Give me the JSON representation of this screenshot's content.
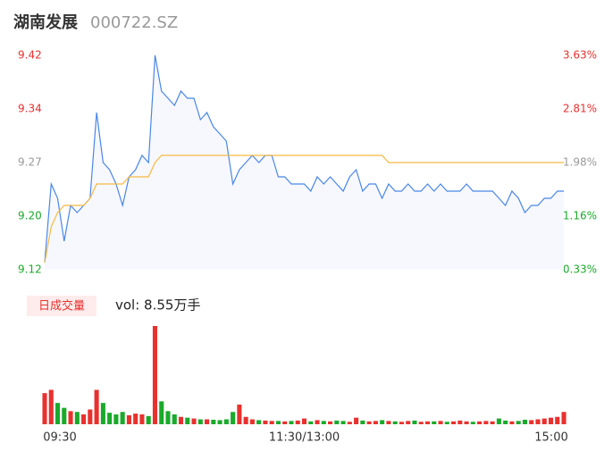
{
  "chart_data": [
    {
      "type": "line",
      "title": "湖南发展",
      "subtitle": "000722.SZ",
      "ylim": [
        9.12,
        9.42
      ],
      "yticks": [
        9.12,
        {
          "value": 9.195,
          "label": "9.20"
        },
        9.27,
        {
          "value": 9.345,
          "label": "9.34"
        },
        9.42
      ],
      "ytick_colors": [
        "#1aaa2b",
        "#1aaa2b",
        "#999999",
        "#e8312f",
        "#e8312f"
      ],
      "y2lim": [
        0.33,
        3.63
      ],
      "y2ticks": [
        {
          "value": 0.33,
          "label": "0.33%"
        },
        {
          "value": 1.155,
          "label": "1.16%"
        },
        {
          "value": 1.98,
          "label": "1.98%"
        },
        {
          "value": 2.805,
          "label": "2.81%"
        },
        {
          "value": 3.63,
          "label": "3.63%"
        }
      ],
      "y2tick_colors": [
        "#1aaa2b",
        "#1aaa2b",
        "#999999",
        "#e8312f",
        "#e8312f"
      ],
      "grid": false,
      "series": [
        {
          "color": "#4a86e8",
          "values": [
            9.13,
            9.24,
            9.22,
            9.16,
            9.21,
            9.2,
            9.21,
            9.22,
            9.34,
            9.27,
            9.26,
            9.24,
            9.21,
            9.25,
            9.26,
            9.28,
            9.27,
            9.42,
            9.37,
            9.36,
            9.35,
            9.37,
            9.36,
            9.36,
            9.33,
            9.34,
            9.32,
            9.31,
            9.3,
            9.24,
            9.26,
            9.27,
            9.28,
            9.27,
            9.28,
            9.28,
            9.25,
            9.25,
            9.24,
            9.24,
            9.24,
            9.23,
            9.25,
            9.24,
            9.25,
            9.24,
            9.23,
            9.25,
            9.26,
            9.23,
            9.24,
            9.24,
            9.22,
            9.24,
            9.23,
            9.23,
            9.24,
            9.23,
            9.23,
            9.24,
            9.23,
            9.24,
            9.23,
            9.23,
            9.23,
            9.24,
            9.23,
            9.23,
            9.23,
            9.23,
            9.22,
            9.21,
            9.23,
            9.22,
            9.2,
            9.21,
            9.21,
            9.22,
            9.22,
            9.23,
            9.23
          ]
        },
        {
          "color": "#f5b942",
          "values": [
            9.13,
            9.18,
            9.2,
            9.21,
            9.21,
            9.21,
            9.21,
            9.22,
            9.24,
            9.24,
            9.24,
            9.24,
            9.24,
            9.25,
            9.25,
            9.25,
            9.25,
            9.27,
            9.28,
            9.28,
            9.28,
            9.28,
            9.28,
            9.28,
            9.28,
            9.28,
            9.28,
            9.28,
            9.28,
            9.28,
            9.28,
            9.28,
            9.28,
            9.28,
            9.28,
            9.28,
            9.28,
            9.28,
            9.28,
            9.28,
            9.28,
            9.28,
            9.28,
            9.28,
            9.28,
            9.28,
            9.28,
            9.28,
            9.28,
            9.28,
            9.28,
            9.28,
            9.28,
            9.27,
            9.27,
            9.27,
            9.27,
            9.27,
            9.27,
            9.27,
            9.27,
            9.27,
            9.27,
            9.27,
            9.27,
            9.27,
            9.27,
            9.27,
            9.27,
            9.27,
            9.27,
            9.27,
            9.27,
            9.27,
            9.27,
            9.27,
            9.27,
            9.27,
            9.27,
            9.27,
            9.27
          ]
        }
      ]
    },
    {
      "type": "bar",
      "label": "日成交量",
      "annotation": "vol: 8.55万手",
      "categories": [
        "09:30",
        null,
        null,
        null,
        null,
        null,
        null,
        null,
        null,
        null,
        null,
        null,
        null,
        null,
        null,
        null,
        null,
        null,
        null,
        null,
        null,
        null,
        null,
        null,
        null,
        null,
        null,
        null,
        null,
        null,
        null,
        null,
        null,
        null,
        null,
        null,
        null,
        null,
        null,
        null,
        "11:30/13:00",
        null,
        null,
        null,
        null,
        null,
        null,
        null,
        null,
        null,
        null,
        null,
        null,
        null,
        null,
        null,
        null,
        null,
        null,
        null,
        null,
        null,
        null,
        null,
        null,
        null,
        null,
        null,
        null,
        null,
        null,
        null,
        null,
        null,
        null,
        null,
        null,
        null,
        null,
        null,
        "15:00"
      ],
      "values": [
        380,
        420,
        260,
        200,
        160,
        150,
        120,
        180,
        420,
        260,
        140,
        120,
        150,
        110,
        130,
        120,
        100,
        1200,
        280,
        160,
        120,
        90,
        80,
        70,
        60,
        60,
        55,
        50,
        60,
        150,
        240,
        90,
        60,
        50,
        45,
        40,
        40,
        35,
        40,
        45,
        70,
        35,
        50,
        40,
        35,
        45,
        40,
        30,
        80,
        45,
        35,
        40,
        50,
        40,
        35,
        30,
        40,
        45,
        30,
        35,
        35,
        40,
        30,
        35,
        45,
        35,
        30,
        35,
        40,
        35,
        70,
        45,
        35,
        40,
        55,
        50,
        60,
        70,
        80,
        90,
        150
      ],
      "colors": [
        "#e8312f",
        "#e8312f",
        "#1aaa2b",
        "#1aaa2b",
        "#e8312f",
        "#1aaa2b",
        "#e8312f",
        "#e8312f",
        "#e8312f",
        "#1aaa2b",
        "#1aaa2b",
        "#1aaa2b",
        "#1aaa2b",
        "#e8312f",
        "#e8312f",
        "#e8312f",
        "#1aaa2b",
        "#e8312f",
        "#1aaa2b",
        "#1aaa2b",
        "#1aaa2b",
        "#e8312f",
        "#1aaa2b",
        "#e8312f",
        "#1aaa2b",
        "#e8312f",
        "#1aaa2b",
        "#1aaa2b",
        "#1aaa2b",
        "#1aaa2b",
        "#e8312f",
        "#e8312f",
        "#e8312f",
        "#1aaa2b",
        "#e8312f",
        "#e8312f",
        "#1aaa2b",
        "#e8312f",
        "#1aaa2b",
        "#e8312f",
        "#e8312f",
        "#1aaa2b",
        "#e8312f",
        "#1aaa2b",
        "#e8312f",
        "#1aaa2b",
        "#1aaa2b",
        "#e8312f",
        "#e8312f",
        "#1aaa2b",
        "#e8312f",
        "#e8312f",
        "#1aaa2b",
        "#e8312f",
        "#1aaa2b",
        "#e8312f",
        "#e8312f",
        "#1aaa2b",
        "#e8312f",
        "#e8312f",
        "#1aaa2b",
        "#e8312f",
        "#1aaa2b",
        "#e8312f",
        "#e8312f",
        "#e8312f",
        "#1aaa2b",
        "#e8312f",
        "#e8312f",
        "#e8312f",
        "#1aaa2b",
        "#1aaa2b",
        "#e8312f",
        "#1aaa2b",
        "#1aaa2b",
        "#e8312f",
        "#e8312f",
        "#e8312f",
        "#e8312f",
        "#e8312f",
        "#e8312f"
      ]
    }
  ]
}
